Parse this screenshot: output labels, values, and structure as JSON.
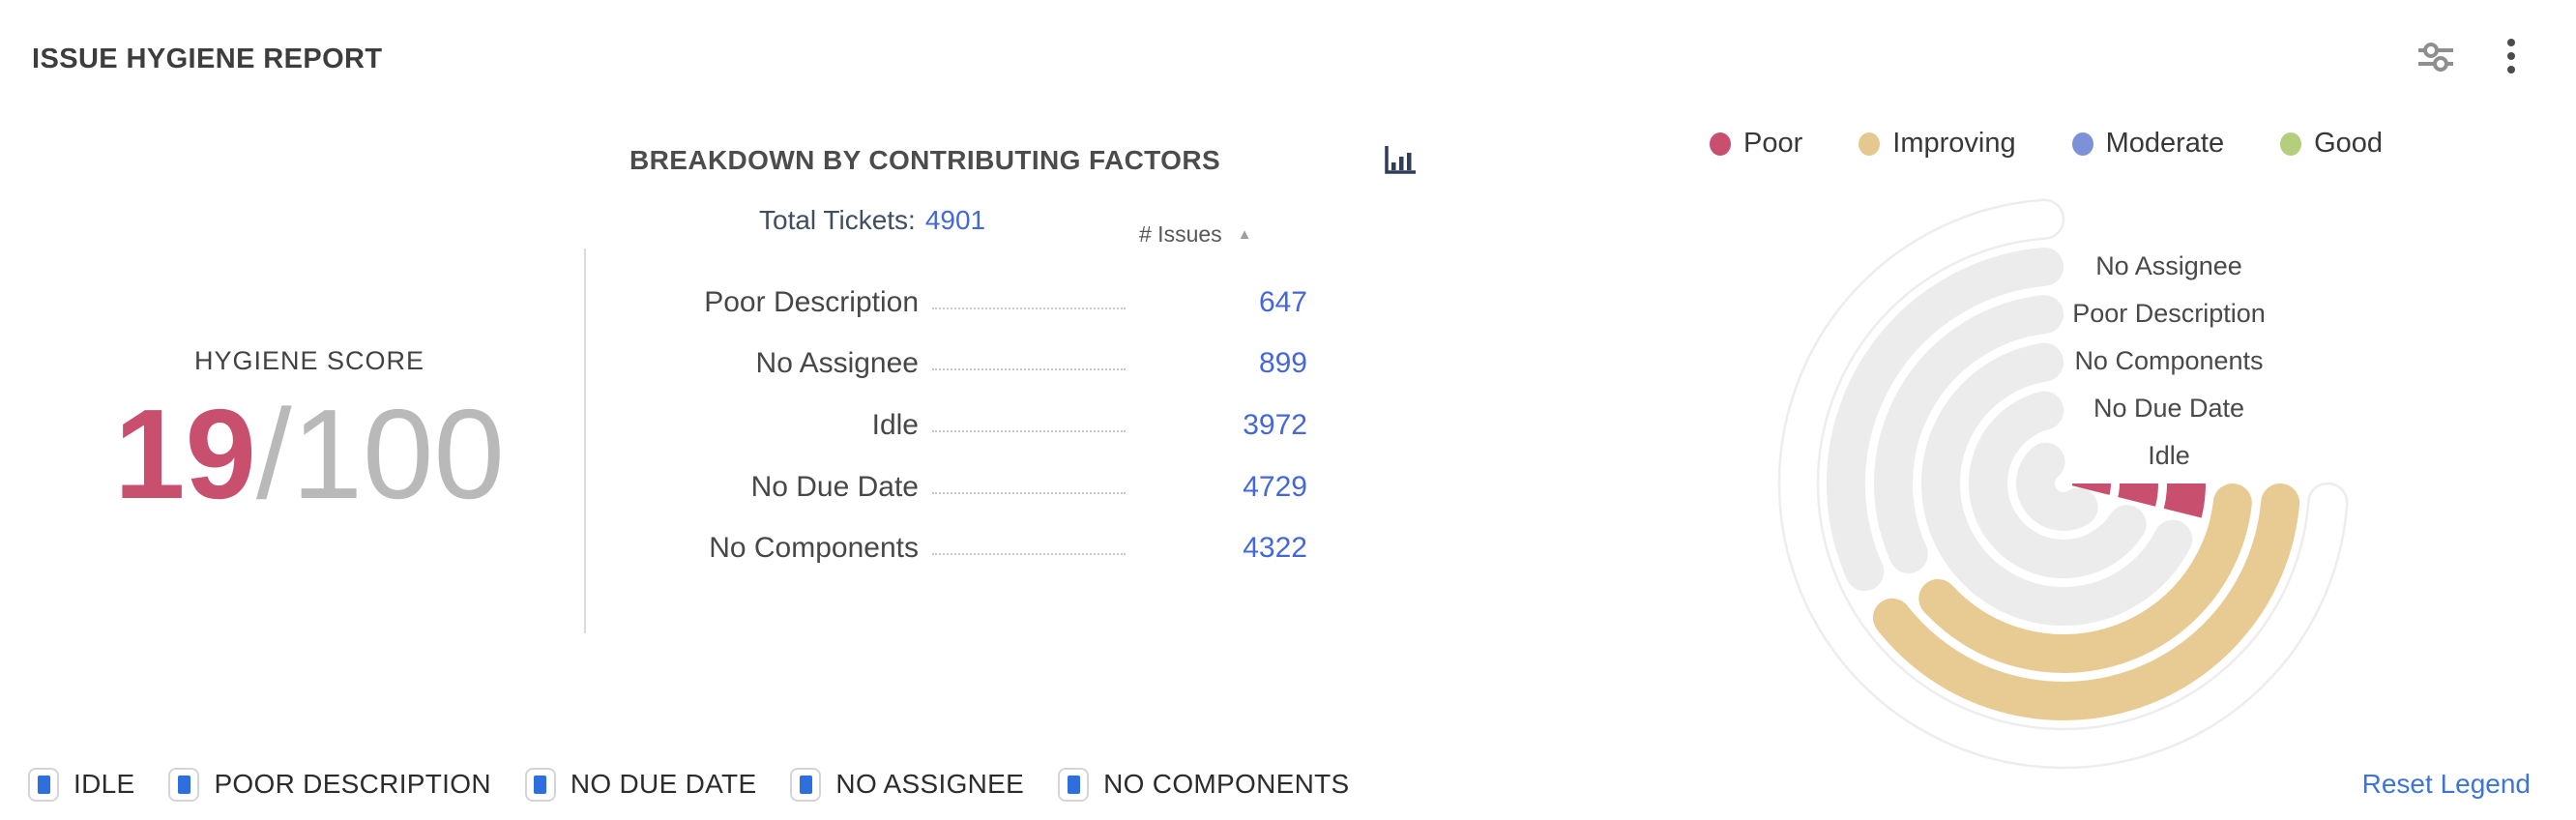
{
  "header": {
    "title": "ISSUE HYGIENE REPORT",
    "icons": [
      {
        "name": "filter-sliders-icon"
      },
      {
        "name": "kebab-menu-icon"
      }
    ]
  },
  "breakdown": {
    "heading": "BREAKDOWN BY CONTRIBUTING FACTORS",
    "chart_toggle_icon": "bar-chart-icon",
    "total_label": "Total Tickets:",
    "total_value": "4901",
    "issues_header": "# Issues",
    "sort_icon": "▲",
    "sort_order": "asc",
    "rows": [
      {
        "label": "Poor Description",
        "value": "647"
      },
      {
        "label": "No Assignee",
        "value": "899"
      },
      {
        "label": "Idle",
        "value": "3972"
      },
      {
        "label": "No Due Date",
        "value": "4729"
      },
      {
        "label": "No Components",
        "value": "4322"
      }
    ]
  },
  "score": {
    "label": "HYGIENE SCORE",
    "value": "19",
    "suffix": "/100"
  },
  "status_legend": [
    {
      "label": "Poor",
      "color": "#c8506e"
    },
    {
      "label": "Improving",
      "color": "#e5c88f"
    },
    {
      "label": "Moderate",
      "color": "#7d90d8"
    },
    {
      "label": "Good",
      "color": "#b3cf7d"
    }
  ],
  "chart_data": {
    "type": "radial-bar",
    "title": "Issue hygiene contributing factors",
    "legend_position": "top-right",
    "angle_axis": {
      "start_deg": 0,
      "max_deg": 270,
      "direction": "clockwise"
    },
    "center": [
      304,
      300
    ],
    "ring_width": 40,
    "track_color": "#ececec",
    "ghost_ring": {
      "radius": 274,
      "start_deg": 0,
      "end_deg": 270,
      "outline_color": "#ededed"
    },
    "rings": [
      {
        "label": "No Assignee",
        "issues": 899,
        "status": "Improving",
        "color": "#e8cb93",
        "radius": 225,
        "bar_start_deg": 0,
        "bar_end_deg": 147,
        "cap": "round",
        "track_start_deg": 151
      },
      {
        "label": "Poor Description",
        "issues": 647,
        "status": "Improving",
        "color": "#e8cb93",
        "radius": 176,
        "bar_start_deg": 0,
        "bar_end_deg": 144,
        "cap": "round",
        "track_start_deg": 149
      },
      {
        "label": "No Components",
        "issues": 4322,
        "status": "Poor",
        "color": "#c8506e",
        "radius": 127,
        "bar_start_deg": 0,
        "bar_end_deg": 14,
        "cap": "butt",
        "track_start_deg": 18
      },
      {
        "label": "No Due Date",
        "issues": 4729,
        "status": "Poor",
        "color": "#c8506e",
        "radius": 78,
        "bar_start_deg": 0,
        "bar_end_deg": 14,
        "cap": "butt",
        "track_start_deg": 18
      },
      {
        "label": "Idle",
        "issues": 3972,
        "status": "Poor",
        "color": "#c8506e",
        "radius": 29,
        "bar_start_deg": 0,
        "bar_end_deg": 14,
        "cap": "butt",
        "track_start_deg": 18
      }
    ]
  },
  "bottom_legend": {
    "items": [
      "IDLE",
      "POOR DESCRIPTION",
      "NO DUE DATE",
      "NO ASSIGNEE",
      "NO COMPONENTS"
    ],
    "checkbox_color": "#2e6edd",
    "reset_label": "Reset Legend"
  }
}
